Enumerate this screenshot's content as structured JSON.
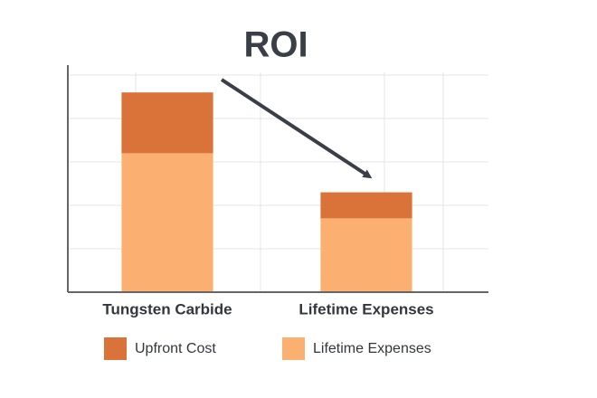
{
  "chart_data": {
    "type": "stacked_bar",
    "title": "ROI",
    "categories": [
      "Tungsten Carbide",
      "Lifetime Expenses"
    ],
    "series": [
      {
        "name": "Upfront Cost",
        "color": "#d9733a",
        "values": [
          1.4,
          0.6
        ]
      },
      {
        "name": "Lifetime Expenses",
        "color": "#fbb072",
        "values": [
          3.2,
          1.7
        ]
      }
    ],
    "ylim": [
      0,
      5
    ],
    "yticks": [
      1,
      2,
      3,
      4,
      5
    ],
    "grid": true
  }
}
